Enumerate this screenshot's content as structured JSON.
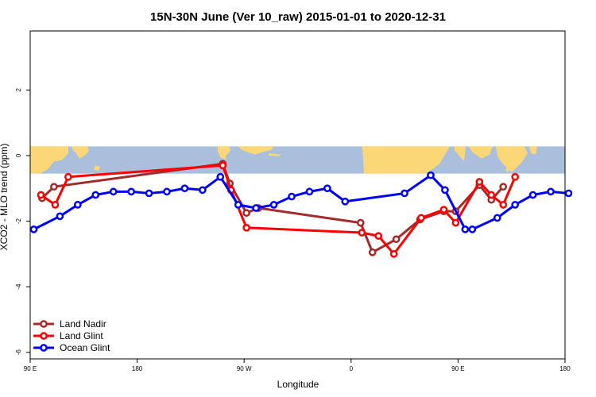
{
  "chart_data": {
    "type": "line",
    "title": "15N-30N June (Ver 10_raw)   2015-01-01 to 2020-12-31",
    "xlabel": "Longitude",
    "ylabel": "XCO2 - MLO trend (ppm)",
    "xlim": [
      -265,
      185
    ],
    "ylim": [
      -6.2,
      3.8
    ],
    "x_ticks": [
      {
        "value": -265,
        "label": "90 E"
      },
      {
        "value": -175,
        "label": "180"
      },
      {
        "value": -85,
        "label": "90 W"
      },
      {
        "value": 5,
        "label": "0"
      },
      {
        "value": 95,
        "label": "90 E"
      },
      {
        "value": 185,
        "label": "180"
      }
    ],
    "y_ticks": [
      {
        "value": 2,
        "label": "2"
      },
      {
        "value": 0,
        "label": "0"
      },
      {
        "value": -2,
        "label": "-2"
      },
      {
        "value": -4,
        "label": "-4"
      },
      {
        "value": -6,
        "label": "-6"
      }
    ],
    "grid": false,
    "legend_position": "bottom-left",
    "map_band": {
      "y_top": 0.28,
      "y_bottom": -0.55,
      "ocean_color": "#a9bfdc",
      "land_color": "#fcd778"
    },
    "series": [
      {
        "name": "Land Nadir",
        "color": "#a52a2a",
        "points": [
          {
            "x": -255,
            "y": -1.3
          },
          {
            "x": -245,
            "y": -0.95
          },
          {
            "x": -103,
            "y": -0.25
          },
          {
            "x": -97,
            "y": -0.85
          },
          {
            "x": -83,
            "y": -1.75
          },
          {
            "x": -73,
            "y": -1.6
          },
          {
            "x": 13,
            "y": -2.05
          },
          {
            "x": 23,
            "y": -2.95
          },
          {
            "x": 43,
            "y": -2.55
          },
          {
            "x": 63,
            "y": -1.95
          },
          {
            "x": 83,
            "y": -1.7
          },
          {
            "x": 93,
            "y": -1.7
          },
          {
            "x": 113,
            "y": -0.9
          },
          {
            "x": 123,
            "y": -1.35
          },
          {
            "x": 133,
            "y": -0.95
          }
        ]
      },
      {
        "name": "Land Glint",
        "color": "#ff0000",
        "points": [
          {
            "x": -256,
            "y": -1.2
          },
          {
            "x": -244,
            "y": -1.5
          },
          {
            "x": -233,
            "y": -0.65
          },
          {
            "x": -103,
            "y": -0.3
          },
          {
            "x": -96,
            "y": -1.05
          },
          {
            "x": -83,
            "y": -2.2
          },
          {
            "x": 14,
            "y": -2.35
          },
          {
            "x": 28,
            "y": -2.45
          },
          {
            "x": 41,
            "y": -3.0
          },
          {
            "x": 64,
            "y": -1.9
          },
          {
            "x": 83,
            "y": -1.65
          },
          {
            "x": 93,
            "y": -2.05
          },
          {
            "x": 113,
            "y": -0.8
          },
          {
            "x": 123,
            "y": -1.2
          },
          {
            "x": 133,
            "y": -1.5
          },
          {
            "x": 143,
            "y": -0.65
          }
        ]
      },
      {
        "name": "Ocean Glint",
        "color": "#0000ff",
        "points": [
          {
            "x": -262,
            "y": -2.25
          },
          {
            "x": -240,
            "y": -1.85
          },
          {
            "x": -225,
            "y": -1.5
          },
          {
            "x": -210,
            "y": -1.2
          },
          {
            "x": -195,
            "y": -1.1
          },
          {
            "x": -180,
            "y": -1.1
          },
          {
            "x": -165,
            "y": -1.15
          },
          {
            "x": -150,
            "y": -1.1
          },
          {
            "x": -135,
            "y": -1.0
          },
          {
            "x": -120,
            "y": -1.05
          },
          {
            "x": -105,
            "y": -0.65
          },
          {
            "x": -90,
            "y": -1.5
          },
          {
            "x": -75,
            "y": -1.6
          },
          {
            "x": -60,
            "y": -1.5
          },
          {
            "x": -45,
            "y": -1.25
          },
          {
            "x": -30,
            "y": -1.1
          },
          {
            "x": -15,
            "y": -1.0
          },
          {
            "x": 0,
            "y": -1.4
          },
          {
            "x": 50,
            "y": -1.15
          },
          {
            "x": 72,
            "y": -0.6
          },
          {
            "x": 84,
            "y": -1.05
          },
          {
            "x": 101,
            "y": -2.25
          },
          {
            "x": 107,
            "y": -2.25
          },
          {
            "x": 128,
            "y": -1.9
          },
          {
            "x": 143,
            "y": -1.5
          },
          {
            "x": 158,
            "y": -1.2
          },
          {
            "x": 173,
            "y": -1.1
          },
          {
            "x": 188,
            "y": -1.15
          }
        ]
      }
    ]
  }
}
